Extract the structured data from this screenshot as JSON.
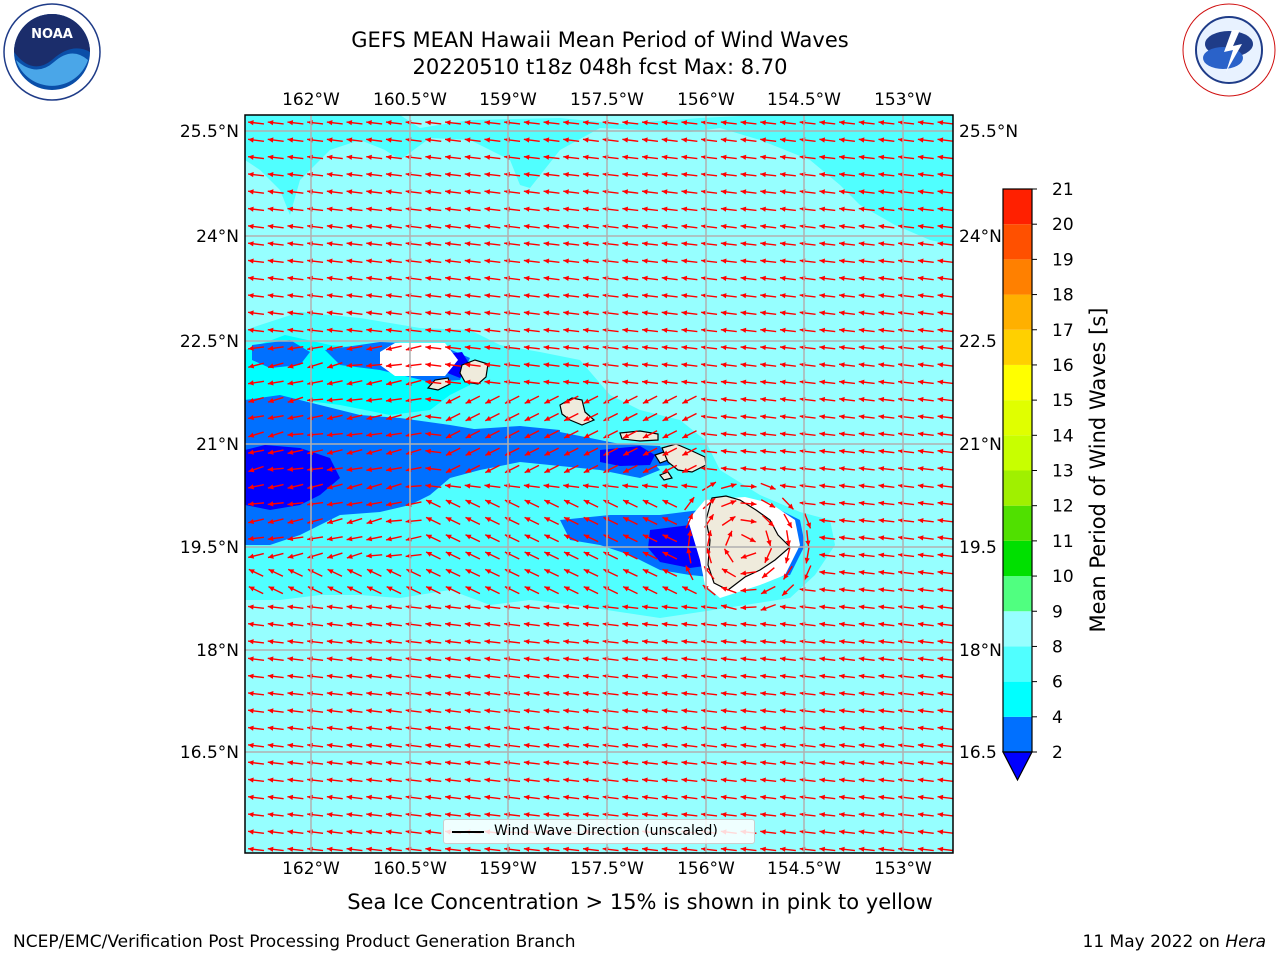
{
  "title": {
    "line1": "GEFS MEAN Hawaii Mean Period of Wind Waves",
    "line2": "20220510 t18z 048h fcst   Max: 8.70"
  },
  "map": {
    "lon_ticks": [
      "162°W",
      "160.5°W",
      "159°W",
      "157.5°W",
      "156°W",
      "154.5°W",
      "153°W"
    ],
    "lat_ticks": [
      "25.5°N",
      "24°N",
      "22.5°N",
      "21°N",
      "19.5°N",
      "18°N",
      "16.5°N"
    ],
    "lat_ticks_right": [
      "25.5°N",
      "24°N",
      "22.5",
      "21°N",
      "19.5",
      "18°N",
      "16.5"
    ],
    "ocean_color": "#96ffff",
    "arrow_color": "#ff0000",
    "land_color": "#efebdc",
    "legend_label": "Wind Wave Direction (unscaled)"
  },
  "colorbar": {
    "label": "Mean Period of Wind Waves [s]",
    "levels": [
      "2",
      "4",
      "6",
      "8",
      "9",
      "10",
      "11",
      "12",
      "13",
      "14",
      "15",
      "16",
      "17",
      "18",
      "19",
      "20",
      "21"
    ],
    "colors": [
      "#0000ff",
      "#0070ff",
      "#00ffff",
      "#50ffff",
      "#96ffff",
      "#50ff80",
      "#00e000",
      "#50e000",
      "#a0f000",
      "#c8ff00",
      "#e0ff00",
      "#ffff00",
      "#ffd000",
      "#ffb000",
      "#ff8000",
      "#ff5000",
      "#ff2000",
      "#ff0000"
    ]
  },
  "footer": {
    "note": "Sea Ice Concentration > 15% is shown in pink to yellow",
    "credit_left": "NCEP/EMC/Verification Post Processing Product Generation Branch",
    "credit_date": "11 May 2022 on ",
    "credit_host": "Hera"
  },
  "logos": {
    "noaa": "NOAA",
    "noaa_ring": "NATIONAL OCEANIC AND ATMOSPHERIC ADMINISTRATION · U.S. DEPARTMENT OF COMMERCE",
    "nws_ring": "NATIONAL WEATHER SERVICE"
  }
}
